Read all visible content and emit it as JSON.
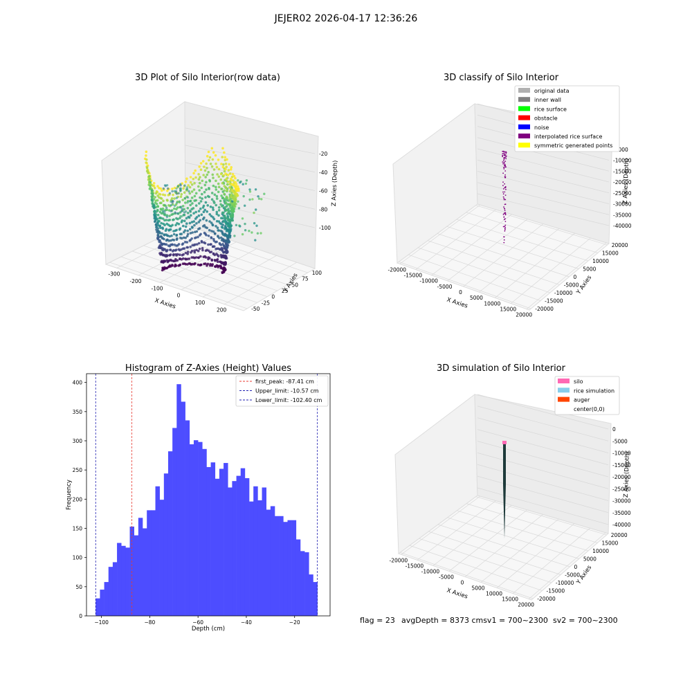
{
  "figure": {
    "suptitle": "JEJER02 2026-04-17 12:36:26",
    "footer": {
      "flag": "flag = 23",
      "avg": "avgDepth = 8373 cmsv1 = 700~2300",
      "sv2": "sv2 = 700~2300"
    }
  },
  "colors": {
    "hist_bar": "#4d4dff",
    "first_peak": "#e8382f",
    "limits": "#1f1fb0",
    "grid_pane": "#f2f2f2",
    "viridis_dark": "#440154",
    "viridis_mid": "#21918c",
    "viridis_light": "#fde725"
  },
  "chart_data": [
    {
      "type": "scatter",
      "panel": "3d-raw",
      "title": "3D Plot of Silo Interior(row data)",
      "xlabel": "X Axies",
      "ylabel": "Y Axies",
      "zlabel": "Z Axies (Depth)",
      "x_ticks": [
        "-300",
        "-200",
        "-100",
        "0",
        "100",
        "200"
      ],
      "y_ticks": [
        "-50",
        "-25",
        "0",
        "25",
        "50",
        "75",
        "100"
      ],
      "z_ticks": [
        "-20",
        "-40",
        "-60",
        "-80",
        "-100"
      ],
      "xlim": [
        -330,
        230
      ],
      "ylim": [
        -60,
        115
      ],
      "zlim": [
        -110,
        -12
      ],
      "colormap": "viridis"
    },
    {
      "type": "scatter",
      "panel": "3d-classify",
      "title": "3D classify of Silo Interior",
      "xlabel": "X Axies",
      "ylabel": "Y Axies",
      "zlabel": "Z Axies (Depth)",
      "x_ticks": [
        "-20000",
        "-15000",
        "-10000",
        "-5000",
        "0",
        "5000",
        "10000",
        "15000",
        "20000"
      ],
      "y_ticks": [
        "-20000",
        "-15000",
        "-10000",
        "-5000",
        "0",
        "5000",
        "10000",
        "15000",
        "20000"
      ],
      "z_ticks": [
        "0",
        "-5000",
        "-10000",
        "-15000",
        "-20000",
        "-25000",
        "-30000",
        "-35000",
        "-40000"
      ],
      "legend": [
        {
          "label": "original data",
          "color": "#b0b0b0"
        },
        {
          "label": "inner wall",
          "color": "#808080"
        },
        {
          "label": "rice surface",
          "color": "#00ff00"
        },
        {
          "label": "obstacle",
          "color": "#ff0000"
        },
        {
          "label": "noise",
          "color": "#0000ff"
        },
        {
          "label": "interpolated rice surface",
          "color": "#800080"
        },
        {
          "label": "symmetric generated points",
          "color": "#ffff00"
        }
      ]
    },
    {
      "type": "bar",
      "panel": "histogram",
      "title": "Histogram of Z-Axies (Height) Values",
      "xlabel": "Depth (cm)",
      "ylabel": "Frequency",
      "xlim": [
        -106.2,
        -5.3
      ],
      "ylim": [
        0,
        415
      ],
      "x_ticks": [
        -100,
        -80,
        -60,
        -40,
        -20
      ],
      "x_tick_labels": [
        "−100",
        "−80",
        "−60",
        "−40",
        "−20"
      ],
      "y_ticks": [
        0,
        50,
        100,
        150,
        200,
        250,
        300,
        350,
        400
      ],
      "bin_start": -102.4,
      "bin_end": -10.57,
      "values": [
        30,
        45,
        58,
        84,
        92,
        125,
        120,
        117,
        153,
        138,
        168,
        150,
        181,
        181,
        222,
        199,
        244,
        282,
        322,
        397,
        367,
        335,
        294,
        301,
        298,
        286,
        255,
        263,
        235,
        252,
        262,
        220,
        231,
        240,
        253,
        236,
        196,
        222,
        198,
        220,
        182,
        188,
        171,
        171,
        161,
        164,
        164,
        131,
        111,
        109,
        71,
        58
      ],
      "lines": [
        {
          "label": "first_peak: -87.41 cm",
          "x": -87.41,
          "color": "#e8382f"
        },
        {
          "label": "Upper_limit: -10.57 cm",
          "x": -10.57,
          "color": "#1f1fb0"
        },
        {
          "label": "Lower_limit: -102.40 cm",
          "x": -102.4,
          "color": "#1f1fb0"
        }
      ]
    },
    {
      "type": "scatter",
      "panel": "3d-simulation",
      "title": "3D simulation of Silo Interior",
      "xlabel": "X Axies",
      "ylabel": "Y Axies",
      "zlabel": "Z Axies (Depth)",
      "x_ticks": [
        "-20000",
        "-15000",
        "-10000",
        "-5000",
        "0",
        "5000",
        "10000",
        "15000",
        "20000"
      ],
      "y_ticks": [
        "-20000",
        "-15000",
        "-10000",
        "-5000",
        "0",
        "5000",
        "10000",
        "15000",
        "20000"
      ],
      "z_ticks": [
        "0",
        "-5000",
        "-10000",
        "-15000",
        "-20000",
        "-25000",
        "-30000",
        "-35000",
        "-40000"
      ],
      "legend": [
        {
          "label": "silo",
          "color": "#ff69b4"
        },
        {
          "label": "rice simulation",
          "color": "#87ceeb"
        },
        {
          "label": "auger",
          "color": "#ff4500"
        },
        {
          "label": "center(0,0)",
          "color": ""
        }
      ]
    }
  ]
}
